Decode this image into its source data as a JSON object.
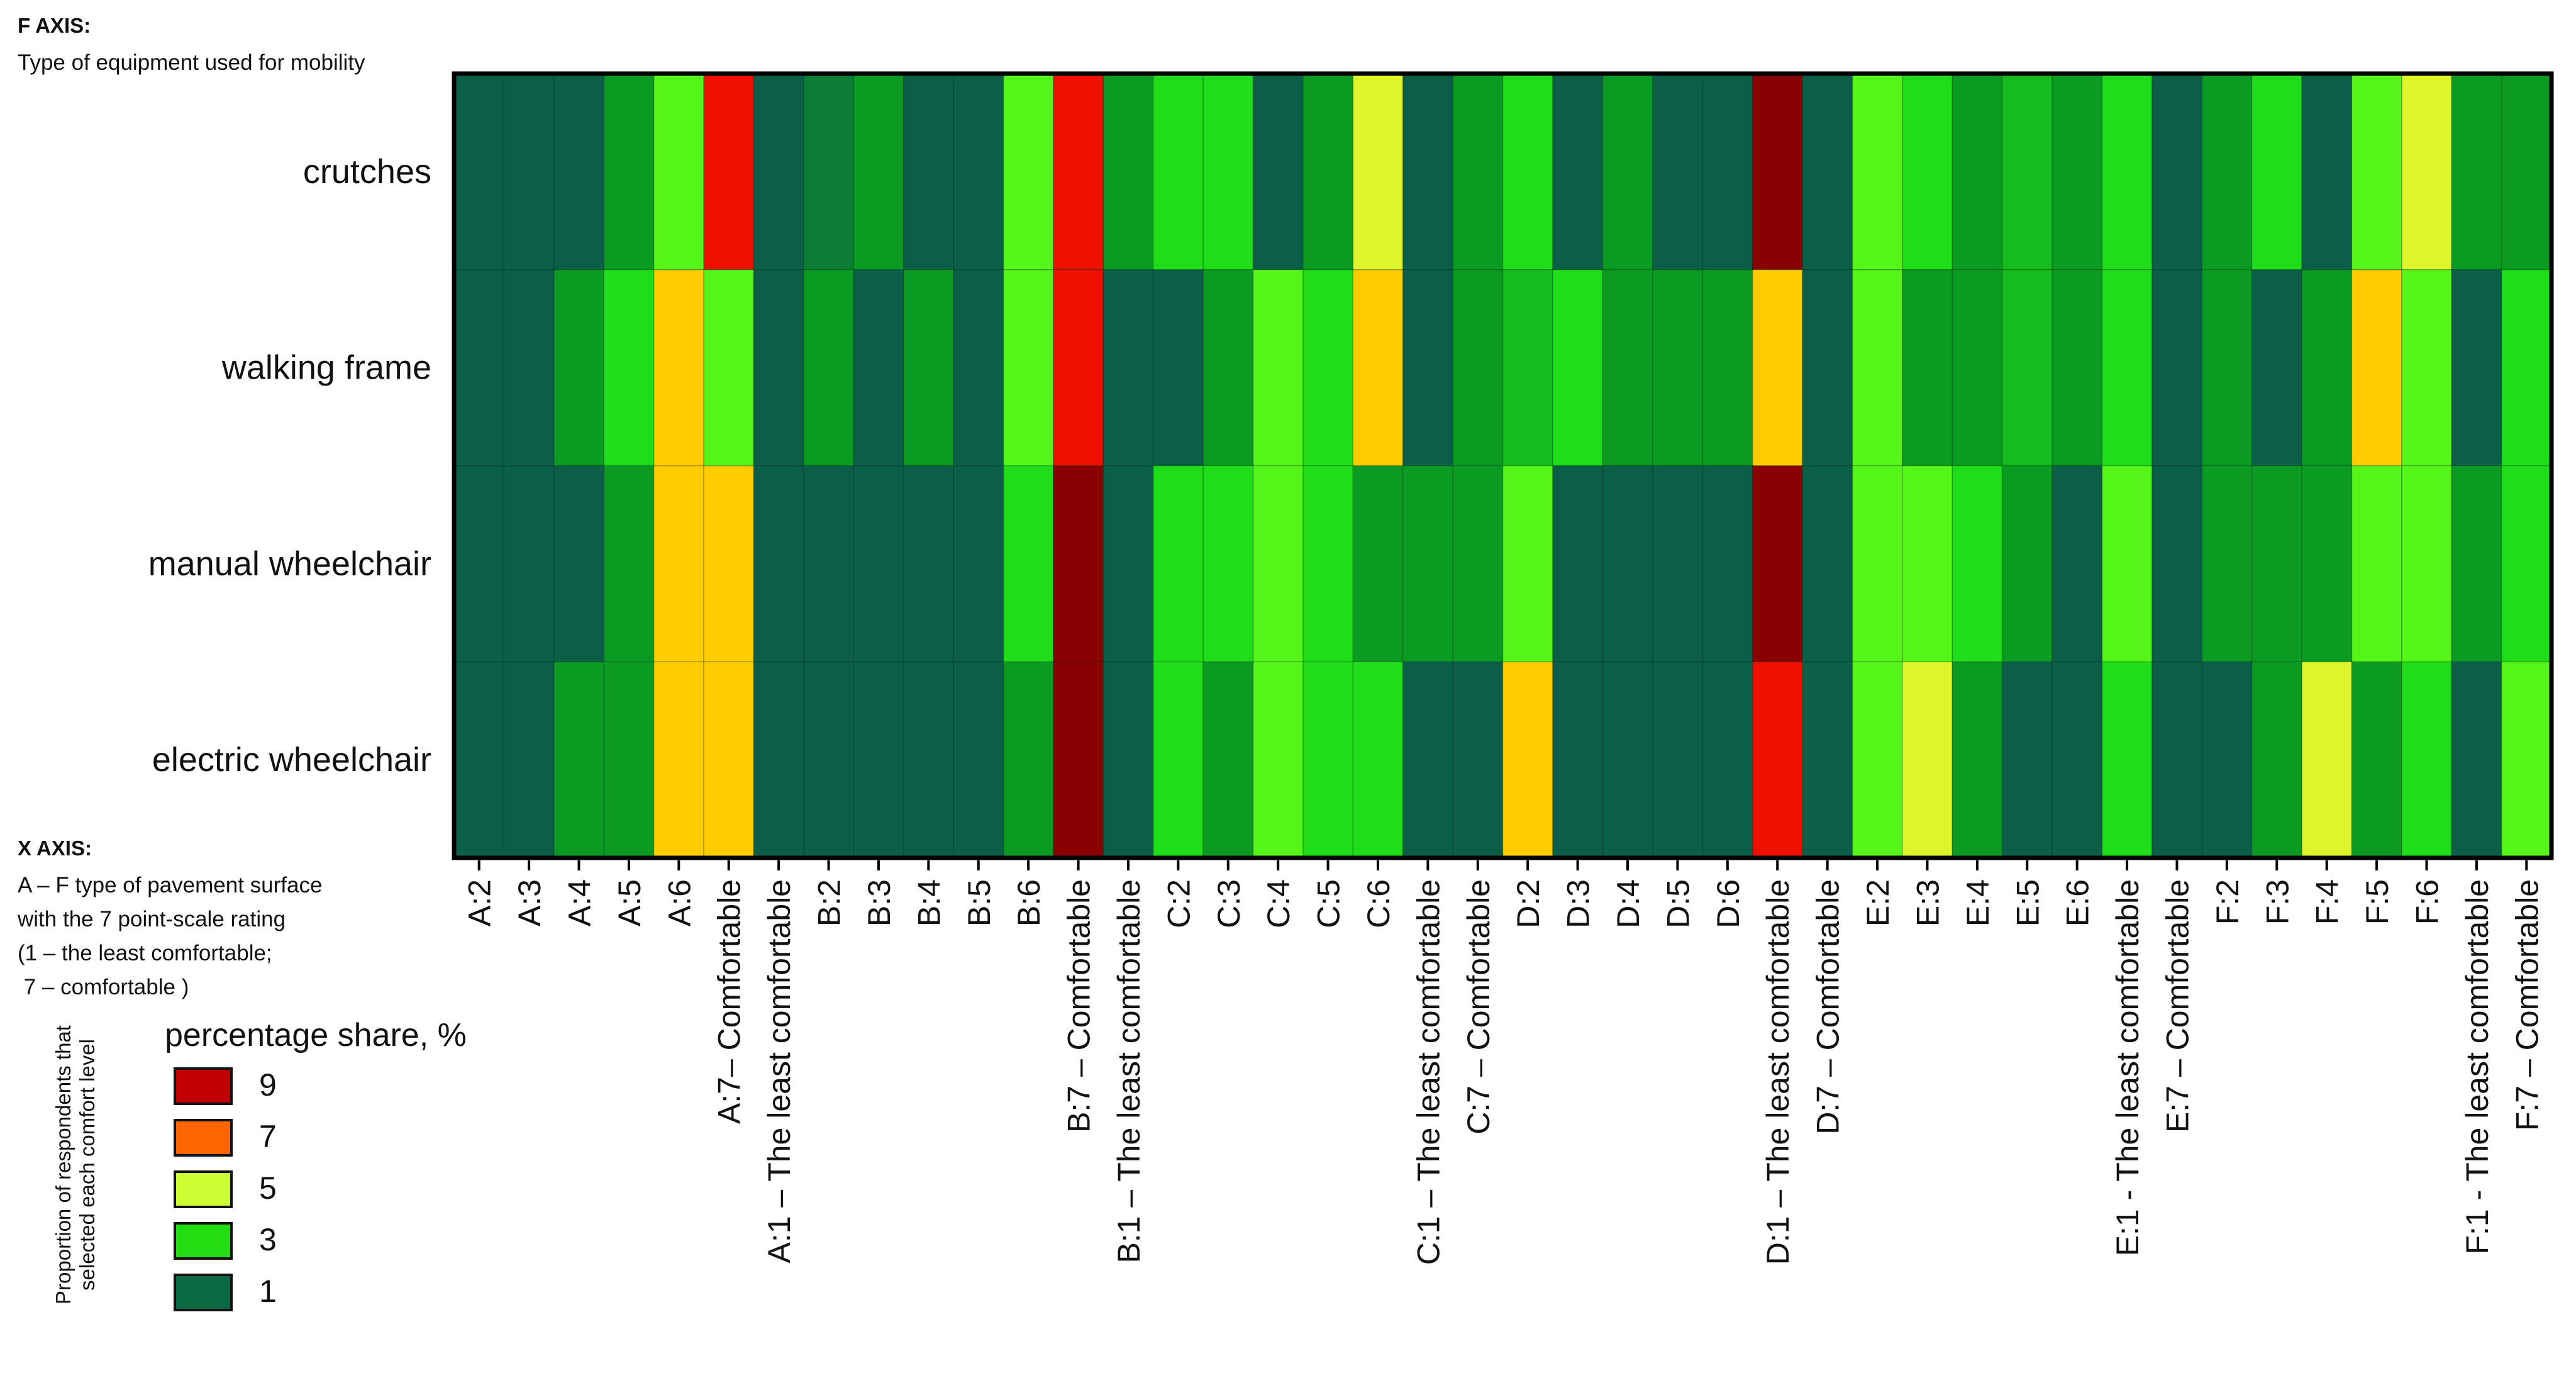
{
  "f_axis": {
    "title": "F AXIS:",
    "subtitle": "Type of equipment used for mobility"
  },
  "x_axis": {
    "title": "X AXIS:",
    "lines": [
      "A – F type of pavement surface",
      "with the 7 point-scale rating",
      "(1 – the least comfortable;",
      " 7 – comfortable )"
    ]
  },
  "legend": {
    "title": "percentage share, %",
    "side_label": "Proportion of respondents that selected each comfort level",
    "items": [
      {
        "label": "9",
        "color": "#c00000"
      },
      {
        "label": "7",
        "color": "#ff6600"
      },
      {
        "label": "5",
        "color": "#ccff33"
      },
      {
        "label": "3",
        "color": "#22dd11"
      },
      {
        "label": "1",
        "color": "#0b6a44"
      }
    ]
  },
  "chart_data": {
    "type": "heatmap",
    "title": "",
    "value_unit": "percentage share, %",
    "colorbar_ticks": [
      9,
      7,
      5,
      3,
      1
    ],
    "rows": [
      "crutches",
      "walking frame",
      "manual wheelchair",
      "electric wheelchair"
    ],
    "columns": [
      "A:2",
      "A:3",
      "A:4",
      "A:5",
      "A:6",
      "A:7– Comfortable",
      "A:1 – The least comfortable",
      "B:2",
      "B:3",
      "B:4",
      "B:5",
      "B:6",
      "B:7 – Comfortable",
      "B:1 – The least comfortable",
      "C:2",
      "C:3",
      "C:4",
      "C:5",
      "C:6",
      "C:1 – The least comfortable",
      "C:7 – Comfortable",
      "D:2",
      "D:3",
      "D:4",
      "D:5",
      "D:6",
      "D:1 – The least comfortable",
      "D:7 – Comfortable",
      "E:2",
      "E:3",
      "E:4",
      "E:5",
      "E:6",
      "E:1 - The least comfortable",
      "E:7 – Comfortable",
      "F:2",
      "F:3",
      "F:4",
      "F:5",
      "F:6",
      "F:1 - The least comfortable",
      "F:7 – Comfortable"
    ],
    "values": [
      [
        1.0,
        1.0,
        1.0,
        2.0,
        3.5,
        8.5,
        1.0,
        1.5,
        2.0,
        1.0,
        1.0,
        3.5,
        8.5,
        2.0,
        3.0,
        3.0,
        1.0,
        2.0,
        4.5,
        1.0,
        2.0,
        3.0,
        1.0,
        2.0,
        1.0,
        1.0,
        10.0,
        1.0,
        3.5,
        3.0,
        2.0,
        2.5,
        2.0,
        3.0,
        1.0,
        2.0,
        3.0,
        1.0,
        3.5,
        4.5,
        2.0,
        2.0
      ],
      [
        1.0,
        1.0,
        2.0,
        3.0,
        6.0,
        3.5,
        1.0,
        2.0,
        1.0,
        2.0,
        1.0,
        3.5,
        8.5,
        1.0,
        1.0,
        2.0,
        3.5,
        3.0,
        6.0,
        1.0,
        2.0,
        2.5,
        3.0,
        2.0,
        2.0,
        2.0,
        6.0,
        1.0,
        3.5,
        2.0,
        2.0,
        2.5,
        2.0,
        3.0,
        1.0,
        2.0,
        1.0,
        2.0,
        6.0,
        3.5,
        1.0,
        3.0
      ],
      [
        1.0,
        1.0,
        1.0,
        2.0,
        6.0,
        6.0,
        1.0,
        1.0,
        1.0,
        1.0,
        1.0,
        3.0,
        10.0,
        1.0,
        3.0,
        3.0,
        3.5,
        3.0,
        2.0,
        2.0,
        2.0,
        3.5,
        1.0,
        1.0,
        1.0,
        1.0,
        10.0,
        1.0,
        3.5,
        3.5,
        3.0,
        2.0,
        1.0,
        3.5,
        1.0,
        2.0,
        2.0,
        2.0,
        3.5,
        3.5,
        2.0,
        3.0
      ],
      [
        1.0,
        1.0,
        2.0,
        2.0,
        6.0,
        6.0,
        1.0,
        1.0,
        1.0,
        1.0,
        1.0,
        2.0,
        10.0,
        1.0,
        3.0,
        2.0,
        3.5,
        3.0,
        3.0,
        1.0,
        1.0,
        6.0,
        1.0,
        1.0,
        1.0,
        1.0,
        8.5,
        1.0,
        3.5,
        4.5,
        2.0,
        1.0,
        1.0,
        3.0,
        1.0,
        1.0,
        2.0,
        4.5,
        2.0,
        3.0,
        1.0,
        3.5
      ]
    ],
    "xlabel": "",
    "ylabel": ""
  }
}
